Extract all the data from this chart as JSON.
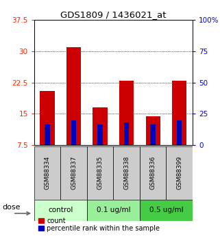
{
  "title": "GDS1809 / 1436021_at",
  "samples": [
    "GSM88334",
    "GSM88337",
    "GSM88335",
    "GSM88338",
    "GSM88336",
    "GSM88399"
  ],
  "count_values": [
    20.5,
    31.0,
    16.5,
    23.0,
    14.5,
    23.0
  ],
  "percentile_values": [
    12.5,
    13.5,
    12.5,
    13.0,
    12.5,
    13.5
  ],
  "ylim_left": [
    7.5,
    37.5
  ],
  "ylim_right": [
    0,
    100
  ],
  "yticks_left": [
    7.5,
    15.0,
    22.5,
    30.0,
    37.5
  ],
  "yticks_right": [
    0,
    25,
    50,
    75,
    100
  ],
  "ytick_labels_left": [
    "7.5",
    "15",
    "22.5",
    "30",
    "37.5"
  ],
  "ytick_labels_right": [
    "0",
    "25",
    "50",
    "75",
    "100%"
  ],
  "left_tick_color": "#ff2200",
  "right_tick_color": "#0000cc",
  "bar_bottom": 7.5,
  "count_color": "#cc0000",
  "percentile_color": "#0000bb",
  "grid_yticks": [
    15.0,
    22.5,
    30.0
  ],
  "group_colors": [
    "#ccffcc",
    "#99ee99",
    "#44cc44"
  ],
  "group_labels": [
    "control",
    "0.1 ug/ml",
    "0.5 ug/ml"
  ],
  "group_ranges": [
    [
      0,
      2
    ],
    [
      2,
      4
    ],
    [
      4,
      6
    ]
  ],
  "dose_label": "dose",
  "legend_count_label": "count",
  "legend_percentile_label": "percentile rank within the sample",
  "background_color": "#ffffff",
  "sample_cell_color": "#cccccc"
}
